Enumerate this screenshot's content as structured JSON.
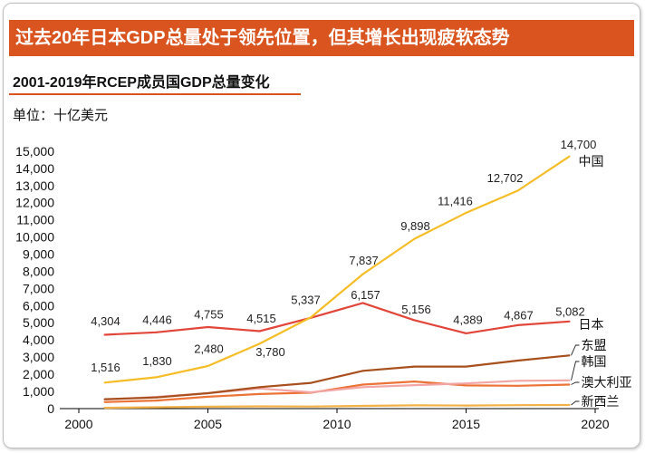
{
  "header": {
    "title": "过去20年日本GDP总量处于领先位置，但其增长出现疲软态势"
  },
  "colors": {
    "title_bar": "#D9541E",
    "subtitle_underline": "#D9541E",
    "axis": "#000000"
  },
  "chart_data": {
    "type": "line",
    "title": "2001-2019年RCEP成员国GDP总量变化",
    "unit": "单位：十亿美元",
    "xlim": [
      2000,
      2020
    ],
    "x_ticks": [
      2000,
      2005,
      2010,
      2015,
      2020
    ],
    "ylim": [
      0,
      15000
    ],
    "y_tick_labels": [
      "0",
      "1,000",
      "2,000",
      "3,000",
      "4,000",
      "5,000",
      "6,000",
      "7,000",
      "8,000",
      "9,000",
      "10,000",
      "11,000",
      "12,000",
      "13,000",
      "14,000",
      "15,000"
    ],
    "grid": false,
    "legend": "right",
    "x": [
      2001,
      2003,
      2005,
      2007,
      2009,
      2011,
      2013,
      2015,
      2017,
      2019
    ],
    "series": [
      {
        "name": "中国",
        "color": "#F5BD27",
        "values": [
          1516,
          1830,
          2480,
          3780,
          5337,
          7837,
          9898,
          11416,
          12702,
          14700
        ],
        "labels": [
          "1,516",
          "1,830",
          "2,480",
          "3,780",
          "5,337",
          "7,837",
          "9,898",
          "11,416",
          "12,702",
          "14,700"
        ]
      },
      {
        "name": "日本",
        "color": "#E2463A",
        "values": [
          4304,
          4446,
          4755,
          4515,
          5300,
          6157,
          5156,
          4389,
          4867,
          5082
        ],
        "labels": [
          "4,304",
          "4,446",
          "4,755",
          "4,515",
          null,
          "6,157",
          "5,156",
          "4,389",
          "4,867",
          "5,082"
        ]
      },
      {
        "name": "东盟",
        "color": "#A84F1E",
        "values": [
          550,
          650,
          900,
          1250,
          1500,
          2200,
          2450,
          2450,
          2800,
          3100
        ]
      },
      {
        "name": "韩国",
        "color": "#F2A5A5",
        "values": [
          530,
          680,
          900,
          1170,
          950,
          1250,
          1370,
          1470,
          1620,
          1650
        ]
      },
      {
        "name": "澳大利亚",
        "color": "#EC7236",
        "values": [
          380,
          470,
          690,
          850,
          930,
          1400,
          1580,
          1350,
          1330,
          1400
        ]
      },
      {
        "name": "新西兰",
        "color": "#F3B247",
        "values": [
          50,
          80,
          110,
          130,
          120,
          160,
          190,
          180,
          200,
          210
        ]
      }
    ]
  }
}
